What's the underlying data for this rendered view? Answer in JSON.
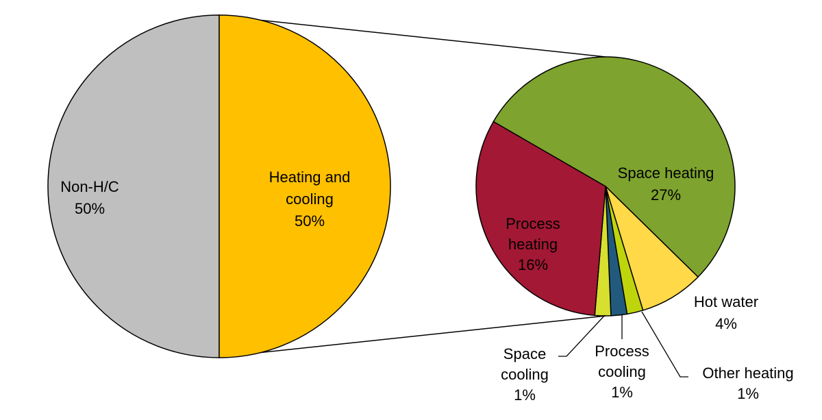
{
  "chart_data": {
    "type": "pie",
    "charts": [
      {
        "id": "main",
        "slices": [
          {
            "label": "Non-H/C",
            "value": 50,
            "percent_label": "50%",
            "color": "#bfbfbf"
          },
          {
            "label": "Heating and cooling",
            "value": 50,
            "percent_label": "50%",
            "color": "#ffc000"
          }
        ]
      },
      {
        "id": "breakdown",
        "exploded_from": "Heating and cooling",
        "slices": [
          {
            "label": "Space heating",
            "value": 27,
            "percent_label": "27%",
            "color": "#7ea32e"
          },
          {
            "label": "Hot water",
            "value": 4,
            "percent_label": "4%",
            "color": "#ffd947"
          },
          {
            "label": "Other heating",
            "value": 1,
            "percent_label": "1%",
            "color": "#bed40d"
          },
          {
            "label": "Process cooling",
            "value": 1,
            "percent_label": "1%",
            "color": "#215a7d"
          },
          {
            "label": "Space cooling",
            "value": 1,
            "percent_label": "1%",
            "color": "#d7df2f"
          },
          {
            "label": "Process heating",
            "value": 16,
            "percent_label": "16%",
            "color": "#a31834"
          }
        ]
      }
    ],
    "legend": "none"
  },
  "labels": {
    "non_hc_line1": "Non-H/C",
    "non_hc_line2": "50%",
    "hc_line1": "Heating and",
    "hc_line2": "cooling",
    "hc_line3": "50%",
    "space_heating_line1": "Space heating",
    "space_heating_line2": "27%",
    "process_heating_line1": "Process",
    "process_heating_line2": "heating",
    "process_heating_line3": "16%",
    "hot_water_line1": "Hot water",
    "hot_water_line2": "4%",
    "space_cooling_line1": "Space",
    "space_cooling_line2": "cooling",
    "space_cooling_line3": "1%",
    "process_cooling_line1": "Process",
    "process_cooling_line2": "cooling",
    "process_cooling_line3": "1%",
    "other_heating_line1": "Other heating",
    "other_heating_line2": "1%"
  }
}
